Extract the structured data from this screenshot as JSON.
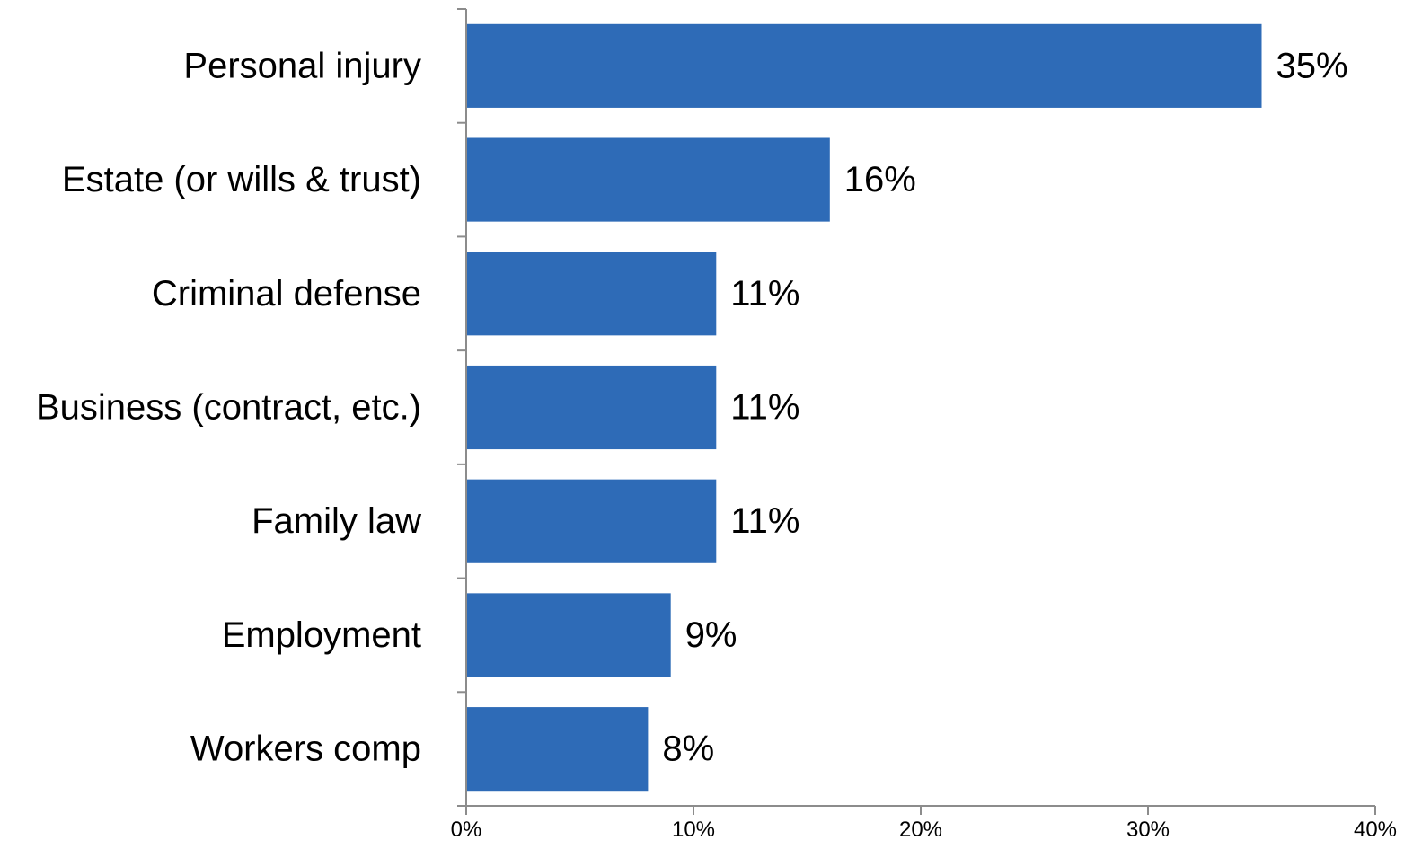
{
  "chart_data": {
    "type": "bar",
    "orientation": "horizontal",
    "categories": [
      "Personal injury",
      "Estate (or wills & trust)",
      "Criminal defense",
      "Business (contract, etc.)",
      "Family law",
      "Employment",
      "Workers comp"
    ],
    "values": [
      35,
      16,
      11,
      11,
      11,
      9,
      8
    ],
    "value_labels": [
      "35%",
      "16%",
      "11%",
      "11%",
      "11%",
      "9%",
      "8%"
    ],
    "xlim": [
      0,
      40
    ],
    "x_ticks": [
      0,
      10,
      20,
      30,
      40
    ],
    "x_tick_labels": [
      "0%",
      "10%",
      "20%",
      "30%",
      "40%"
    ],
    "grid": false,
    "legend": "none",
    "bar_color": "#2e6bb7",
    "title": "",
    "xlabel": "",
    "ylabel": ""
  }
}
